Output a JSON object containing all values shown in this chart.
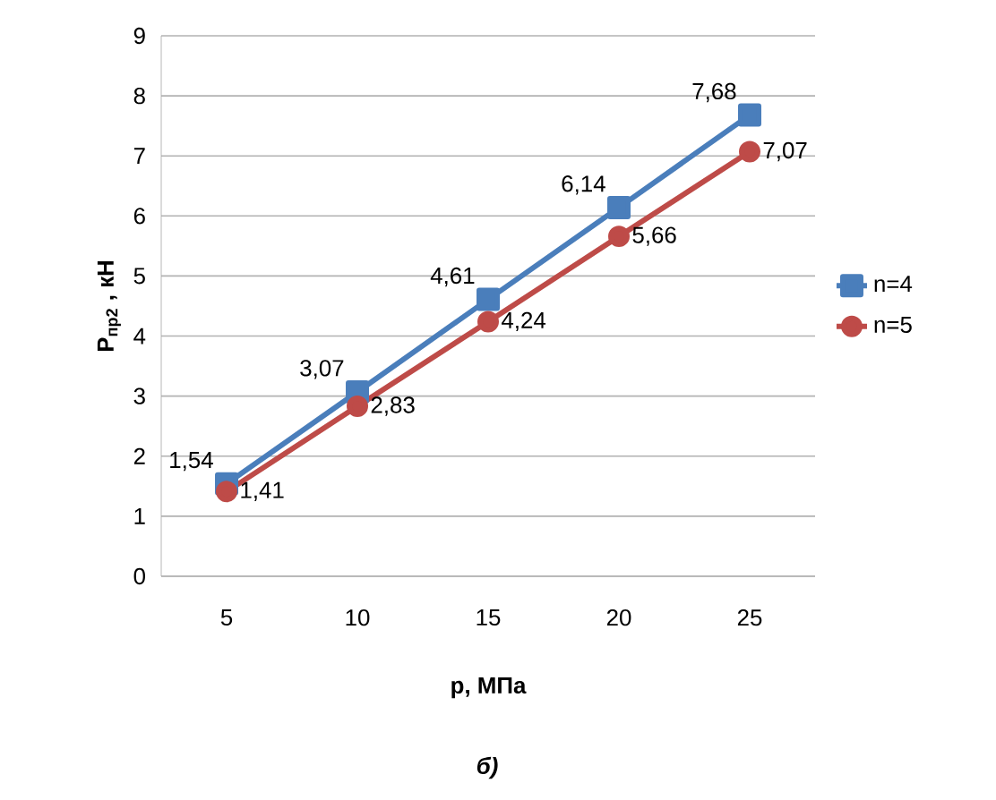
{
  "chart_data": {
    "type": "line",
    "categories": [
      "5",
      "10",
      "15",
      "20",
      "25"
    ],
    "xlabel": "p, МПа",
    "ylabel": "P$_{пр2}$ , кН",
    "ylim": [
      0,
      9
    ],
    "yticks": [
      0,
      1,
      2,
      3,
      4,
      5,
      6,
      7,
      8,
      9
    ],
    "grid": "y",
    "legend": "right",
    "series": [
      {
        "name": "n=4",
        "color": "#4a7ebb",
        "marker": "square",
        "values": [
          1.54,
          3.07,
          4.61,
          6.14,
          7.68
        ],
        "value_labels": [
          "1,54",
          "3,07",
          "4,61",
          "6,14",
          "7,68"
        ]
      },
      {
        "name": "n=5",
        "color": "#be4b48",
        "marker": "circle",
        "values": [
          1.41,
          2.83,
          4.24,
          5.66,
          7.07
        ],
        "value_labels": [
          "1,41",
          "2,83",
          "4,24",
          "5,66",
          "7,07"
        ]
      }
    ],
    "annotations": [
      "б)"
    ]
  }
}
